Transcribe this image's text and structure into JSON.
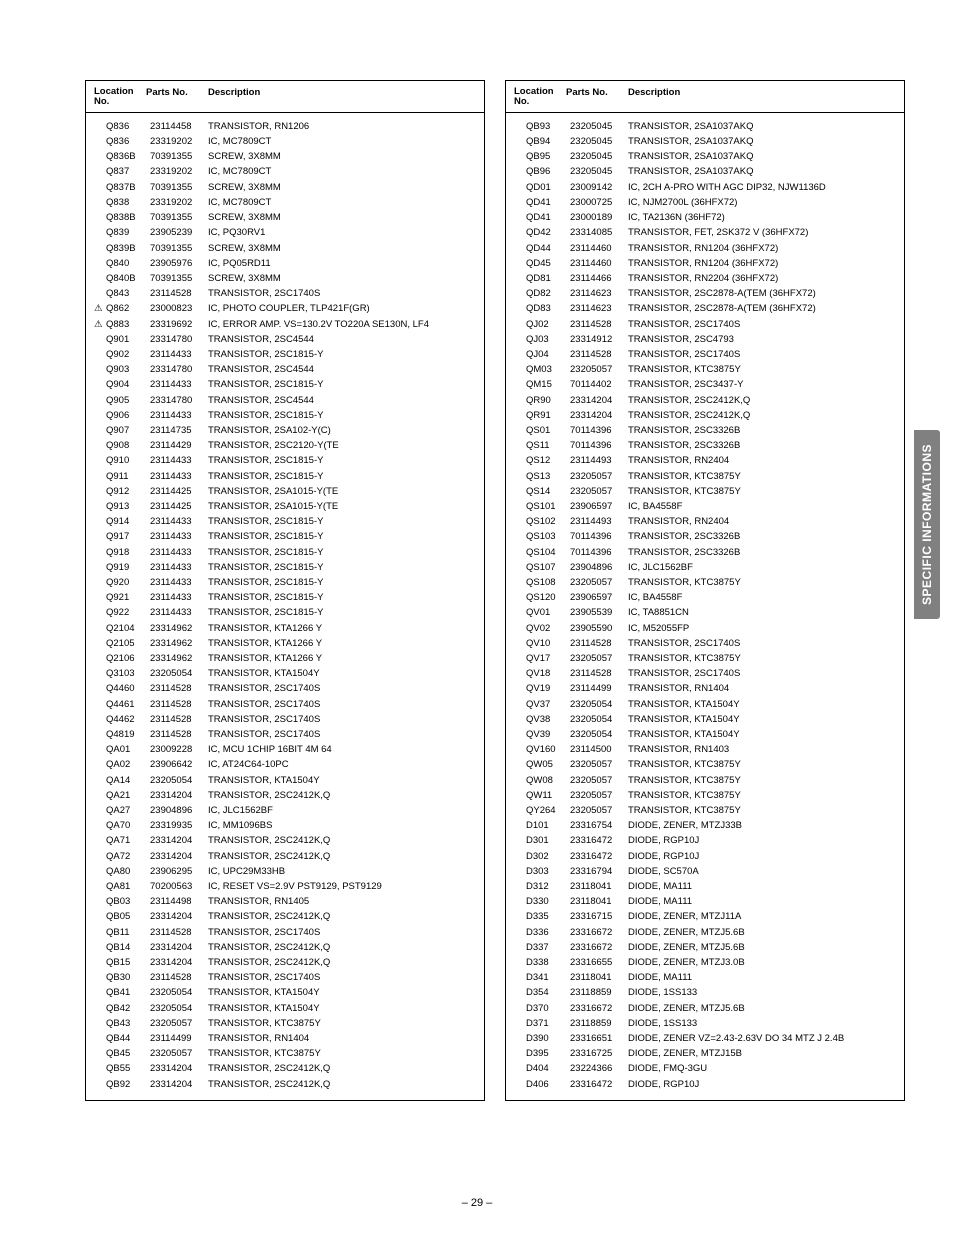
{
  "header": {
    "location": "Location\nNo.",
    "parts": "Parts No.",
    "description": "Description"
  },
  "side_tab": "SPECIFIC INFORMATIONS",
  "page_number": "– 29 –",
  "left": [
    {
      "w": "",
      "l": "Q836",
      "p": "23114458",
      "d": "TRANSISTOR, RN1206"
    },
    {
      "w": "",
      "l": "Q836",
      "p": "23319202",
      "d": "IC, MC7809CT"
    },
    {
      "w": "",
      "l": "Q836B",
      "p": "70391355",
      "d": "SCREW, 3X8MM"
    },
    {
      "w": "",
      "l": "Q837",
      "p": "23319202",
      "d": "IC, MC7809CT"
    },
    {
      "w": "",
      "l": "Q837B",
      "p": "70391355",
      "d": "SCREW, 3X8MM"
    },
    {
      "w": "",
      "l": "Q838",
      "p": "23319202",
      "d": "IC, MC7809CT"
    },
    {
      "w": "",
      "l": "Q838B",
      "p": "70391355",
      "d": "SCREW, 3X8MM"
    },
    {
      "w": "",
      "l": "Q839",
      "p": "23905239",
      "d": "IC, PQ30RV1"
    },
    {
      "w": "",
      "l": "Q839B",
      "p": "70391355",
      "d": "SCREW, 3X8MM"
    },
    {
      "w": "",
      "l": "Q840",
      "p": "23905976",
      "d": "IC, PQ05RD11"
    },
    {
      "w": "",
      "l": "Q840B",
      "p": "70391355",
      "d": "SCREW, 3X8MM"
    },
    {
      "w": "",
      "l": "Q843",
      "p": "23114528",
      "d": "TRANSISTOR, 2SC1740S"
    },
    {
      "w": "⚠",
      "l": "Q862",
      "p": "23000823",
      "d": "IC, PHOTO COUPLER, TLP421F(GR)"
    },
    {
      "w": "⚠",
      "l": "Q883",
      "p": "23319692",
      "d": "IC, ERROR AMP. VS=130.2V TO220A SE130N, LF4"
    },
    {
      "w": "",
      "l": "Q901",
      "p": "23314780",
      "d": "TRANSISTOR, 2SC4544"
    },
    {
      "w": "",
      "l": "Q902",
      "p": "23114433",
      "d": "TRANSISTOR, 2SC1815-Y"
    },
    {
      "w": "",
      "l": "Q903",
      "p": "23314780",
      "d": "TRANSISTOR, 2SC4544"
    },
    {
      "w": "",
      "l": "Q904",
      "p": "23114433",
      "d": "TRANSISTOR, 2SC1815-Y"
    },
    {
      "w": "",
      "l": "Q905",
      "p": "23314780",
      "d": "TRANSISTOR, 2SC4544"
    },
    {
      "w": "",
      "l": "Q906",
      "p": "23114433",
      "d": "TRANSISTOR, 2SC1815-Y"
    },
    {
      "w": "",
      "l": "Q907",
      "p": "23114735",
      "d": "TRANSISTOR, 2SA102-Y(C)"
    },
    {
      "w": "",
      "l": "Q908",
      "p": "23114429",
      "d": "TRANSISTOR, 2SC2120-Y(TE"
    },
    {
      "w": "",
      "l": "Q910",
      "p": "23114433",
      "d": "TRANSISTOR, 2SC1815-Y"
    },
    {
      "w": "",
      "l": "Q911",
      "p": "23114433",
      "d": "TRANSISTOR, 2SC1815-Y"
    },
    {
      "w": "",
      "l": "Q912",
      "p": "23114425",
      "d": "TRANSISTOR, 2SA1015-Y(TE"
    },
    {
      "w": "",
      "l": "Q913",
      "p": "23114425",
      "d": "TRANSISTOR, 2SA1015-Y(TE"
    },
    {
      "w": "",
      "l": "Q914",
      "p": "23114433",
      "d": "TRANSISTOR, 2SC1815-Y"
    },
    {
      "w": "",
      "l": "Q917",
      "p": "23114433",
      "d": "TRANSISTOR, 2SC1815-Y"
    },
    {
      "w": "",
      "l": "Q918",
      "p": "23114433",
      "d": "TRANSISTOR, 2SC1815-Y"
    },
    {
      "w": "",
      "l": "Q919",
      "p": "23114433",
      "d": "TRANSISTOR, 2SC1815-Y"
    },
    {
      "w": "",
      "l": "Q920",
      "p": "23114433",
      "d": "TRANSISTOR, 2SC1815-Y"
    },
    {
      "w": "",
      "l": "Q921",
      "p": "23114433",
      "d": "TRANSISTOR, 2SC1815-Y"
    },
    {
      "w": "",
      "l": "Q922",
      "p": "23114433",
      "d": "TRANSISTOR, 2SC1815-Y"
    },
    {
      "w": "",
      "l": "Q2104",
      "p": "23314962",
      "d": "TRANSISTOR, KTA1266 Y"
    },
    {
      "w": "",
      "l": "Q2105",
      "p": "23314962",
      "d": "TRANSISTOR, KTA1266 Y"
    },
    {
      "w": "",
      "l": "Q2106",
      "p": "23314962",
      "d": "TRANSISTOR, KTA1266 Y"
    },
    {
      "w": "",
      "l": "Q3103",
      "p": "23205054",
      "d": "TRANSISTOR, KTA1504Y"
    },
    {
      "w": "",
      "l": "Q4460",
      "p": "23114528",
      "d": "TRANSISTOR, 2SC1740S"
    },
    {
      "w": "",
      "l": "Q4461",
      "p": "23114528",
      "d": "TRANSISTOR, 2SC1740S"
    },
    {
      "w": "",
      "l": "Q4462",
      "p": "23114528",
      "d": "TRANSISTOR, 2SC1740S"
    },
    {
      "w": "",
      "l": "Q4819",
      "p": "23114528",
      "d": "TRANSISTOR, 2SC1740S"
    },
    {
      "w": "",
      "l": "QA01",
      "p": "23009228",
      "d": "IC, MCU 1CHIP 16BIT 4M 64"
    },
    {
      "w": "",
      "l": "QA02",
      "p": "23906642",
      "d": "IC, AT24C64-10PC"
    },
    {
      "w": "",
      "l": "QA14",
      "p": "23205054",
      "d": "TRANSISTOR, KTA1504Y"
    },
    {
      "w": "",
      "l": "QA21",
      "p": "23314204",
      "d": "TRANSISTOR, 2SC2412K,Q"
    },
    {
      "w": "",
      "l": "QA27",
      "p": "23904896",
      "d": "IC, JLC1562BF"
    },
    {
      "w": "",
      "l": "QA70",
      "p": "23319935",
      "d": "IC, MM1096BS"
    },
    {
      "w": "",
      "l": "QA71",
      "p": "23314204",
      "d": "TRANSISTOR, 2SC2412K,Q"
    },
    {
      "w": "",
      "l": "QA72",
      "p": "23314204",
      "d": "TRANSISTOR, 2SC2412K,Q"
    },
    {
      "w": "",
      "l": "QA80",
      "p": "23906295",
      "d": "IC, UPC29M33HB"
    },
    {
      "w": "",
      "l": "QA81",
      "p": "70200563",
      "d": "IC, RESET VS=2.9V PST9129, PST9129"
    },
    {
      "w": "",
      "l": "QB03",
      "p": "23114498",
      "d": "TRANSISTOR, RN1405"
    },
    {
      "w": "",
      "l": "QB05",
      "p": "23314204",
      "d": "TRANSISTOR, 2SC2412K,Q"
    },
    {
      "w": "",
      "l": "QB11",
      "p": "23114528",
      "d": "TRANSISTOR, 2SC1740S"
    },
    {
      "w": "",
      "l": "QB14",
      "p": "23314204",
      "d": "TRANSISTOR, 2SC2412K,Q"
    },
    {
      "w": "",
      "l": "QB15",
      "p": "23314204",
      "d": "TRANSISTOR, 2SC2412K,Q"
    },
    {
      "w": "",
      "l": "QB30",
      "p": "23114528",
      "d": "TRANSISTOR, 2SC1740S"
    },
    {
      "w": "",
      "l": "QB41",
      "p": "23205054",
      "d": "TRANSISTOR, KTA1504Y"
    },
    {
      "w": "",
      "l": "QB42",
      "p": "23205054",
      "d": "TRANSISTOR, KTA1504Y"
    },
    {
      "w": "",
      "l": "QB43",
      "p": "23205057",
      "d": "TRANSISTOR, KTC3875Y"
    },
    {
      "w": "",
      "l": "QB44",
      "p": "23114499",
      "d": "TRANSISTOR, RN1404"
    },
    {
      "w": "",
      "l": "QB45",
      "p": "23205057",
      "d": "TRANSISTOR, KTC3875Y"
    },
    {
      "w": "",
      "l": "QB55",
      "p": "23314204",
      "d": "TRANSISTOR, 2SC2412K,Q"
    },
    {
      "w": "",
      "l": "QB92",
      "p": "23314204",
      "d": "TRANSISTOR, 2SC2412K,Q"
    }
  ],
  "right": [
    {
      "w": "",
      "l": "QB93",
      "p": "23205045",
      "d": "TRANSISTOR, 2SA1037AKQ"
    },
    {
      "w": "",
      "l": "QB94",
      "p": "23205045",
      "d": "TRANSISTOR, 2SA1037AKQ"
    },
    {
      "w": "",
      "l": "QB95",
      "p": "23205045",
      "d": "TRANSISTOR, 2SA1037AKQ"
    },
    {
      "w": "",
      "l": "QB96",
      "p": "23205045",
      "d": "TRANSISTOR, 2SA1037AKQ"
    },
    {
      "w": "",
      "l": "QD01",
      "p": "23009142",
      "d": "IC, 2CH A-PRO WITH AGC DIP32, NJW1136D"
    },
    {
      "w": "",
      "l": "QD41",
      "p": "23000725",
      "d": "IC, NJM2700L (36HFX72)"
    },
    {
      "w": "",
      "l": "QD41",
      "p": "23000189",
      "d": "IC, TA2136N (36HF72)"
    },
    {
      "w": "",
      "l": "QD42",
      "p": "23314085",
      "d": "TRANSISTOR, FET, 2SK372 V (36HFX72)"
    },
    {
      "w": "",
      "l": "QD44",
      "p": "23114460",
      "d": "TRANSISTOR, RN1204 (36HFX72)"
    },
    {
      "w": "",
      "l": "QD45",
      "p": "23114460",
      "d": "TRANSISTOR, RN1204 (36HFX72)"
    },
    {
      "w": "",
      "l": "QD81",
      "p": "23114466",
      "d": "TRANSISTOR, RN2204 (36HFX72)"
    },
    {
      "w": "",
      "l": "QD82",
      "p": "23114623",
      "d": "TRANSISTOR, 2SC2878-A(TEM (36HFX72)"
    },
    {
      "w": "",
      "l": "QD83",
      "p": "23114623",
      "d": "TRANSISTOR, 2SC2878-A(TEM (36HFX72)"
    },
    {
      "w": "",
      "l": "QJ02",
      "p": "23114528",
      "d": "TRANSISTOR, 2SC1740S"
    },
    {
      "w": "",
      "l": "QJ03",
      "p": "23314912",
      "d": "TRANSISTOR, 2SC4793"
    },
    {
      "w": "",
      "l": "QJ04",
      "p": "23114528",
      "d": "TRANSISTOR, 2SC1740S"
    },
    {
      "w": "",
      "l": "QM03",
      "p": "23205057",
      "d": "TRANSISTOR, KTC3875Y"
    },
    {
      "w": "",
      "l": "QM15",
      "p": "70114402",
      "d": "TRANSISTOR, 2SC3437-Y"
    },
    {
      "w": "",
      "l": "QR90",
      "p": "23314204",
      "d": "TRANSISTOR, 2SC2412K,Q"
    },
    {
      "w": "",
      "l": "QR91",
      "p": "23314204",
      "d": "TRANSISTOR, 2SC2412K,Q"
    },
    {
      "w": "",
      "l": "QS01",
      "p": "70114396",
      "d": "TRANSISTOR, 2SC3326B"
    },
    {
      "w": "",
      "l": "QS11",
      "p": "70114396",
      "d": "TRANSISTOR, 2SC3326B"
    },
    {
      "w": "",
      "l": "QS12",
      "p": "23114493",
      "d": "TRANSISTOR, RN2404"
    },
    {
      "w": "",
      "l": "QS13",
      "p": "23205057",
      "d": "TRANSISTOR, KTC3875Y"
    },
    {
      "w": "",
      "l": "QS14",
      "p": "23205057",
      "d": "TRANSISTOR, KTC3875Y"
    },
    {
      "w": "",
      "l": "QS101",
      "p": "23906597",
      "d": "IC, BA4558F"
    },
    {
      "w": "",
      "l": "QS102",
      "p": "23114493",
      "d": "TRANSISTOR, RN2404"
    },
    {
      "w": "",
      "l": "QS103",
      "p": "70114396",
      "d": "TRANSISTOR, 2SC3326B"
    },
    {
      "w": "",
      "l": "QS104",
      "p": "70114396",
      "d": "TRANSISTOR, 2SC3326B"
    },
    {
      "w": "",
      "l": "QS107",
      "p": "23904896",
      "d": "IC, JLC1562BF"
    },
    {
      "w": "",
      "l": "QS108",
      "p": "23205057",
      "d": "TRANSISTOR, KTC3875Y"
    },
    {
      "w": "",
      "l": "QS120",
      "p": "23906597",
      "d": "IC, BA4558F"
    },
    {
      "w": "",
      "l": "QV01",
      "p": "23905539",
      "d": "IC, TA8851CN"
    },
    {
      "w": "",
      "l": "QV02",
      "p": "23905590",
      "d": "IC, M52055FP"
    },
    {
      "w": "",
      "l": "QV10",
      "p": "23114528",
      "d": "TRANSISTOR, 2SC1740S"
    },
    {
      "w": "",
      "l": "QV17",
      "p": "23205057",
      "d": "TRANSISTOR, KTC3875Y"
    },
    {
      "w": "",
      "l": "QV18",
      "p": "23114528",
      "d": "TRANSISTOR, 2SC1740S"
    },
    {
      "w": "",
      "l": "QV19",
      "p": "23114499",
      "d": "TRANSISTOR, RN1404"
    },
    {
      "w": "",
      "l": "QV37",
      "p": "23205054",
      "d": "TRANSISTOR, KTA1504Y"
    },
    {
      "w": "",
      "l": "QV38",
      "p": "23205054",
      "d": "TRANSISTOR, KTA1504Y"
    },
    {
      "w": "",
      "l": "QV39",
      "p": "23205054",
      "d": "TRANSISTOR, KTA1504Y"
    },
    {
      "w": "",
      "l": "QV160",
      "p": "23114500",
      "d": "TRANSISTOR, RN1403"
    },
    {
      "w": "",
      "l": "QW05",
      "p": "23205057",
      "d": "TRANSISTOR, KTC3875Y"
    },
    {
      "w": "",
      "l": "QW08",
      "p": "23205057",
      "d": "TRANSISTOR, KTC3875Y"
    },
    {
      "w": "",
      "l": "QW11",
      "p": "23205057",
      "d": "TRANSISTOR, KTC3875Y"
    },
    {
      "w": "",
      "l": "QY264",
      "p": "23205057",
      "d": "TRANSISTOR, KTC3875Y"
    },
    {
      "w": "",
      "l": "D101",
      "p": "23316754",
      "d": "DIODE, ZENER, MTZJ33B"
    },
    {
      "w": "",
      "l": "D301",
      "p": "23316472",
      "d": "DIODE, RGP10J"
    },
    {
      "w": "",
      "l": "D302",
      "p": "23316472",
      "d": "DIODE, RGP10J"
    },
    {
      "w": "",
      "l": "D303",
      "p": "23316794",
      "d": "DIODE, SC570A"
    },
    {
      "w": "",
      "l": "D312",
      "p": "23118041",
      "d": "DIODE, MA111"
    },
    {
      "w": "",
      "l": "D330",
      "p": "23118041",
      "d": "DIODE, MA111"
    },
    {
      "w": "",
      "l": "D335",
      "p": "23316715",
      "d": "DIODE, ZENER, MTZJ11A"
    },
    {
      "w": "",
      "l": "D336",
      "p": "23316672",
      "d": "DIODE, ZENER, MTZJ5.6B"
    },
    {
      "w": "",
      "l": "D337",
      "p": "23316672",
      "d": "DIODE, ZENER, MTZJ5.6B"
    },
    {
      "w": "",
      "l": "D338",
      "p": "23316655",
      "d": "DIODE, ZENER, MTZJ3.0B"
    },
    {
      "w": "",
      "l": "D341",
      "p": "23118041",
      "d": "DIODE, MA111"
    },
    {
      "w": "",
      "l": "D354",
      "p": "23118859",
      "d": "DIODE, 1SS133"
    },
    {
      "w": "",
      "l": "D370",
      "p": "23316672",
      "d": "DIODE, ZENER, MTZJ5.6B"
    },
    {
      "w": "",
      "l": "D371",
      "p": "23118859",
      "d": "DIODE, 1SS133"
    },
    {
      "w": "",
      "l": "D390",
      "p": "23316651",
      "d": "DIODE, ZENER VZ=2.43-2.63V DO 34 MTZ J 2.4B"
    },
    {
      "w": "",
      "l": "D395",
      "p": "23316725",
      "d": "DIODE, ZENER, MTZJ15B"
    },
    {
      "w": "",
      "l": "D404",
      "p": "23224366",
      "d": "DIODE, FMQ-3GU"
    },
    {
      "w": "",
      "l": "D406",
      "p": "23316472",
      "d": "DIODE, RGP10J"
    }
  ]
}
